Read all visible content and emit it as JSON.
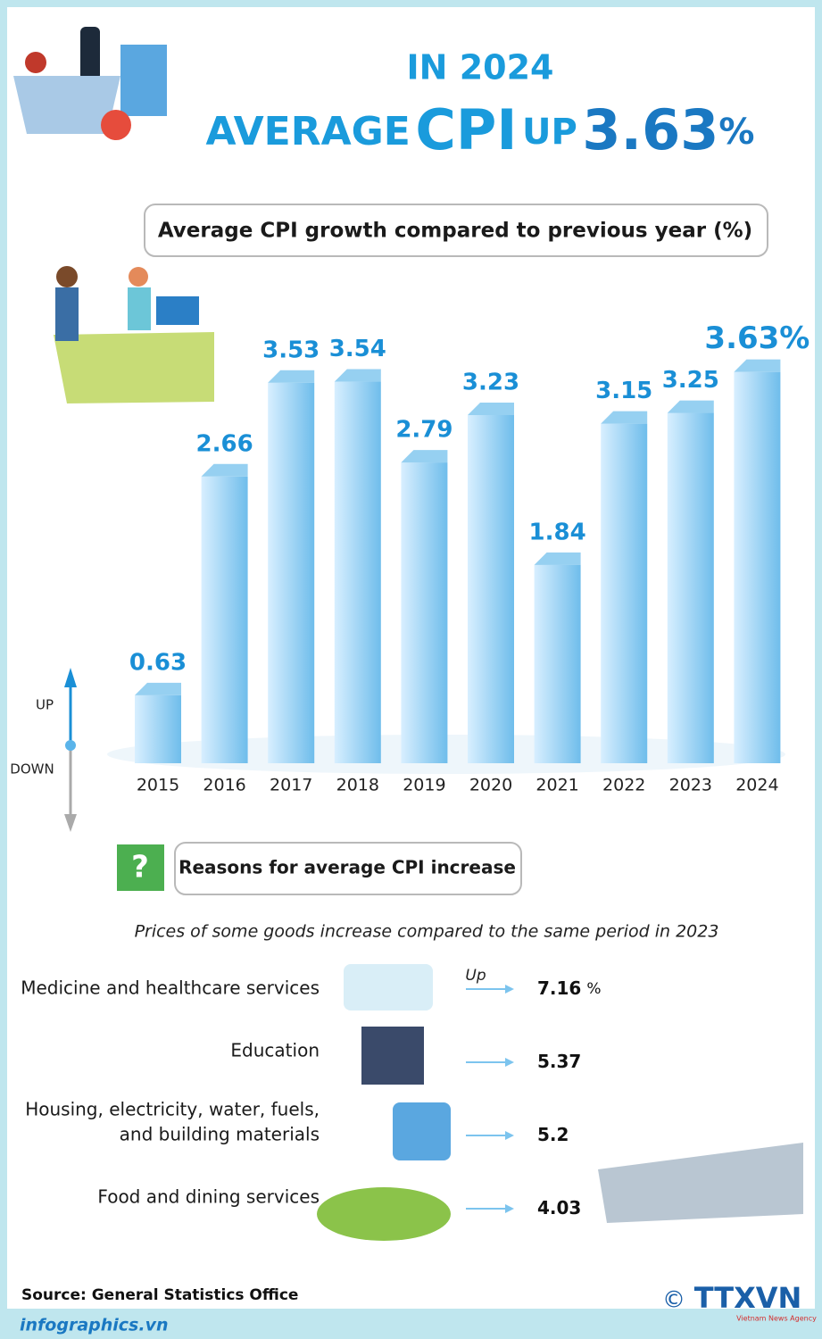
{
  "header": {
    "line1": "IN 2024",
    "line2": [
      "AVERAGE",
      "CPI",
      "UP",
      "3.63",
      "%"
    ]
  },
  "chart_data": {
    "type": "bar",
    "title": "Average CPI growth compared to previous year  (%)",
    "categories": [
      "2015",
      "2016",
      "2017",
      "2018",
      "2019",
      "2020",
      "2021",
      "2022",
      "2023",
      "2024"
    ],
    "values": [
      0.63,
      2.66,
      3.53,
      3.54,
      2.79,
      3.23,
      1.84,
      3.15,
      3.25,
      3.63
    ],
    "value_labels": [
      "0.63",
      "2.66",
      "3.53",
      "3.54",
      "2.79",
      "3.23",
      "1.84",
      "3.15",
      "3.25",
      "3.63%"
    ],
    "color": "#7cc4ee",
    "ylim": [
      0,
      4
    ],
    "side_labels": [
      "UP",
      "DOWN"
    ]
  },
  "reasons": {
    "title": "Reasons for average CPI increase",
    "subtitle": "Prices of some goods increase compared to the same period in 2023",
    "up_label": "Up",
    "items": [
      {
        "lines": [
          "Medicine and healthcare services"
        ],
        "value": "7.16",
        "unit": "%"
      },
      {
        "lines": [
          "Education"
        ],
        "value": "5.37"
      },
      {
        "lines": [
          "Housing, electricity, water, fuels,",
          "and building materials"
        ],
        "value": "5.2"
      },
      {
        "lines": [
          "Food and dining services"
        ],
        "value": "4.03"
      }
    ]
  },
  "footer": {
    "source": "Source: General Statistics Office",
    "site": "infographics.vn",
    "brand": "TTXVN",
    "brand_sub": "Vietnam News Agency",
    "copyright": "©"
  }
}
